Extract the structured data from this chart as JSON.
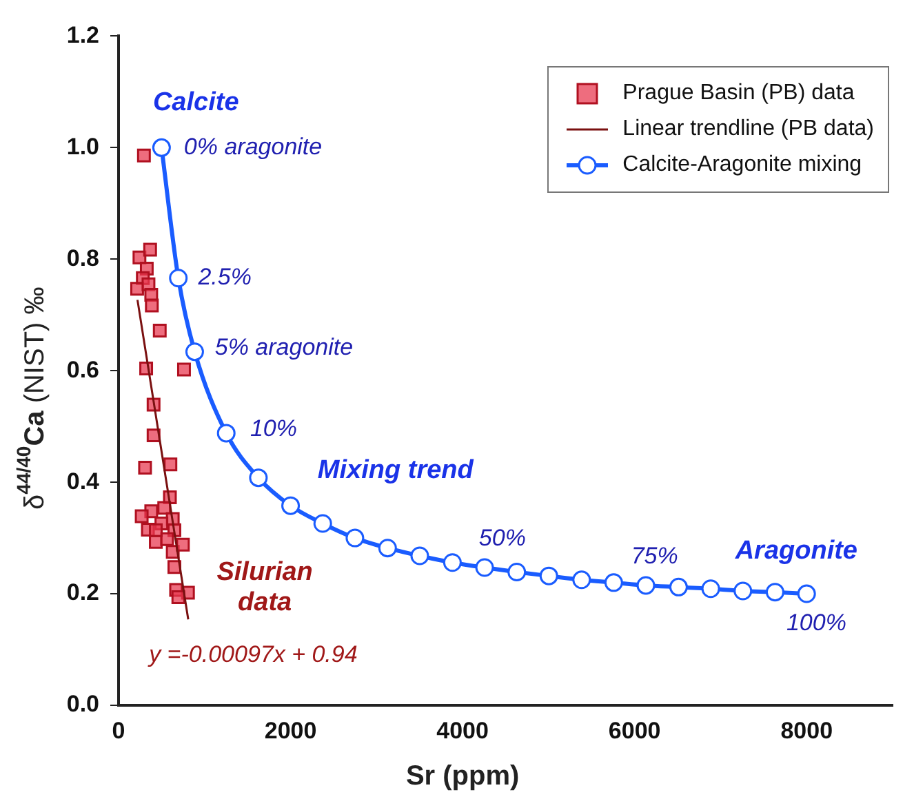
{
  "chart_data": {
    "type": "scatter",
    "xlabel": "Sr (ppm)",
    "ylabel": "δ$^{44/40}$Ca (NIST) ‰",
    "xlim": [
      0,
      9000
    ],
    "xticks": [
      0,
      2000,
      4000,
      6000,
      8000
    ],
    "ylim": [
      0,
      1.2
    ],
    "yticks": [
      {
        "value": 0,
        "label": "0.0"
      },
      {
        "value": 0.2,
        "label": "0.2"
      },
      {
        "value": 0.4,
        "label": "0.4"
      },
      {
        "value": 0.6,
        "label": "0.6"
      },
      {
        "value": 0.8,
        "label": "0.8"
      },
      {
        "value": 1,
        "label": "1.0"
      },
      {
        "value": 1.2,
        "label": "1.2"
      }
    ],
    "grid": false,
    "legend": "top right",
    "series": [
      {
        "name": "Prague Basin (PB) data",
        "marker": "square",
        "color": "#e8384f",
        "x": [
          295,
          243,
          367,
          328,
          282,
          216,
          348,
          380,
          387,
          479,
          321,
          761,
          407,
          407,
          308,
          603,
          597,
          380,
          531,
          341,
          433,
          630,
          649,
          564,
          630,
          649,
          748,
          669,
          807,
          695,
          498,
          269,
          433
        ],
        "values": [
          0.986,
          0.803,
          0.817,
          0.783,
          0.766,
          0.747,
          0.755,
          0.736,
          0.717,
          0.672,
          0.604,
          0.602,
          0.539,
          0.484,
          0.426,
          0.432,
          0.373,
          0.348,
          0.354,
          0.315,
          0.293,
          0.334,
          0.314,
          0.298,
          0.275,
          0.248,
          0.288,
          0.207,
          0.202,
          0.194,
          0.326,
          0.339,
          0.314
        ]
      },
      {
        "name": "Linear trendline (PB data)",
        "type": "line",
        "marker": "none",
        "color": "#7a1010",
        "x": [
          220,
          810
        ],
        "values": [
          0.727,
          0.154
        ]
      },
      {
        "name": "Calcite-Aragonite mixing",
        "type": "line",
        "marker": "circle",
        "color": "#1a5cff",
        "x": [
          500,
          695,
          885,
          1252,
          1626,
          2000,
          2374,
          2748,
          3128,
          3502,
          3882,
          4256,
          4630,
          5003,
          5384,
          5757,
          6131,
          6511,
          6885,
          7259,
          7633,
          8000
        ],
        "values": [
          1.0,
          0.766,
          0.634,
          0.488,
          0.408,
          0.358,
          0.326,
          0.3,
          0.282,
          0.268,
          0.256,
          0.247,
          0.239,
          0.232,
          0.225,
          0.22,
          0.215,
          0.212,
          0.209,
          0.205,
          0.203,
          0.2
        ]
      }
    ],
    "annotations": [
      "Calcite",
      "0% aragonite",
      "2.5%",
      "5% aragonite",
      "10%",
      "Mixing trend",
      "50%",
      "75%",
      "Aragonite",
      "100%",
      "Silurian data",
      "y =-0.00097x + 0.94"
    ]
  }
}
